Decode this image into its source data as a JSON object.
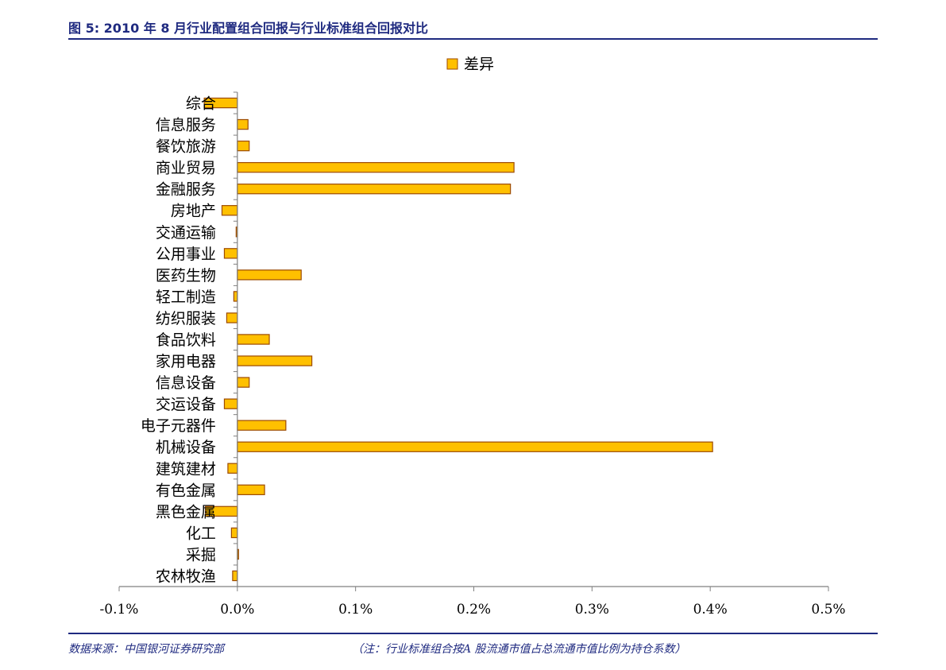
{
  "header": {
    "figure_title": "图 5:  2010 年 8 月行业配置组合回报与行业标准组合回报对比"
  },
  "footer": {
    "source": "数据来源：中国银河证券研究部",
    "note": "（注：行业标准组合按A 股流通市值占总流通市值比例为持仓系数）"
  },
  "chart_data": {
    "type": "bar",
    "orientation": "horizontal",
    "categories": [
      "综合",
      "信息服务",
      "餐饮旅游",
      "商业贸易",
      "金融服务",
      "房地产",
      "交通运输",
      "公用事业",
      "医药生物",
      "轻工制造",
      "纺织服装",
      "食品饮料",
      "家用电器",
      "信息设备",
      "交运设备",
      "电子元器件",
      "机械设备",
      "建筑建材",
      "有色金属",
      "黑色金属",
      "化工",
      "采掘",
      "农林牧渔"
    ],
    "series": [
      {
        "name": "差异",
        "values": [
          -0.028,
          0.009,
          0.01,
          0.234,
          0.231,
          -0.013,
          -0.001,
          -0.011,
          0.054,
          -0.003,
          -0.009,
          0.027,
          0.063,
          0.01,
          -0.011,
          0.041,
          0.402,
          -0.008,
          0.023,
          -0.027,
          -0.005,
          0.001,
          -0.004
        ]
      }
    ],
    "xlim": [
      -0.1,
      0.5
    ],
    "xticks": [
      "-0.1%",
      "0.0%",
      "0.1%",
      "0.2%",
      "0.3%",
      "0.4%",
      "0.5%"
    ],
    "unit": "%",
    "legend_position": "top",
    "grid": false,
    "colors": {
      "bar_fill": "#FFC000",
      "bar_edge": "#9C4A00",
      "axis": "#808080"
    }
  }
}
